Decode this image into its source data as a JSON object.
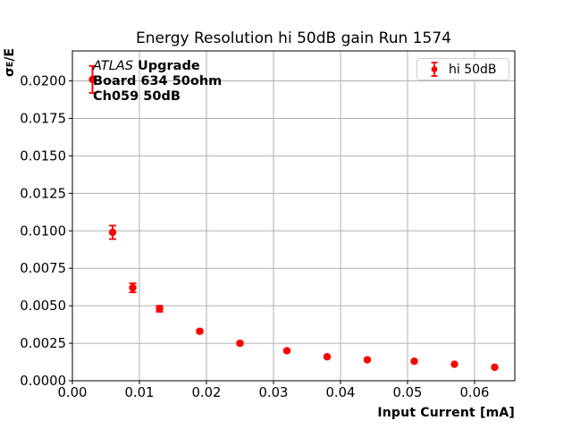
{
  "title": "Energy Resolution hi 50dB gain Run 1574",
  "xlabel": "Input Current [mA]",
  "ylabel": {
    "sigma": "σ",
    "sub": "E",
    "suffix": "/E"
  },
  "annotation": {
    "line1_italic": "ATLAS",
    "line1_bold": " Upgrade",
    "line2": "Board 634 50ohm",
    "line3": "Ch059 50dB"
  },
  "legend": {
    "label": "hi 50dB"
  },
  "colors": {
    "accent": "#ff0000",
    "grid": "#b0b0b0",
    "spine": "#000000",
    "legend_border": "#cccccc",
    "text": "#000000"
  },
  "chart_data": {
    "type": "scatter",
    "title": "Energy Resolution hi 50dB gain Run 1574",
    "xlabel": "Input Current [mA]",
    "ylabel": "sigma_E/E",
    "xlim": [
      0,
      0.066
    ],
    "ylim": [
      0,
      0.022
    ],
    "grid": true,
    "legend_position": "upper right",
    "x_ticks": [
      0.0,
      0.01,
      0.02,
      0.03,
      0.04,
      0.05,
      0.06
    ],
    "x_tick_labels": [
      "0.00",
      "0.01",
      "0.02",
      "0.03",
      "0.04",
      "0.05",
      "0.06"
    ],
    "y_ticks": [
      0.0,
      0.0025,
      0.005,
      0.0075,
      0.01,
      0.0125,
      0.015,
      0.0175,
      0.02
    ],
    "y_tick_labels": [
      "0.0000",
      "0.0025",
      "0.0050",
      "0.0075",
      "0.0100",
      "0.0125",
      "0.0150",
      "0.0175",
      "0.0200"
    ],
    "series": [
      {
        "name": "hi 50dB",
        "color": "#ff0000",
        "marker": "circle-errorbar",
        "x": [
          0.003,
          0.006,
          0.009,
          0.013,
          0.019,
          0.025,
          0.032,
          0.038,
          0.044,
          0.051,
          0.057,
          0.063
        ],
        "y": [
          0.0201,
          0.0099,
          0.0062,
          0.0048,
          0.0033,
          0.0025,
          0.002,
          0.0016,
          0.0014,
          0.0013,
          0.0011,
          0.0009
        ],
        "yerr": [
          0.0009,
          0.00045,
          0.0003,
          0.0002,
          0.0001,
          0.0001,
          8e-05,
          6e-05,
          5e-05,
          5e-05,
          4e-05,
          4e-05
        ]
      }
    ]
  }
}
